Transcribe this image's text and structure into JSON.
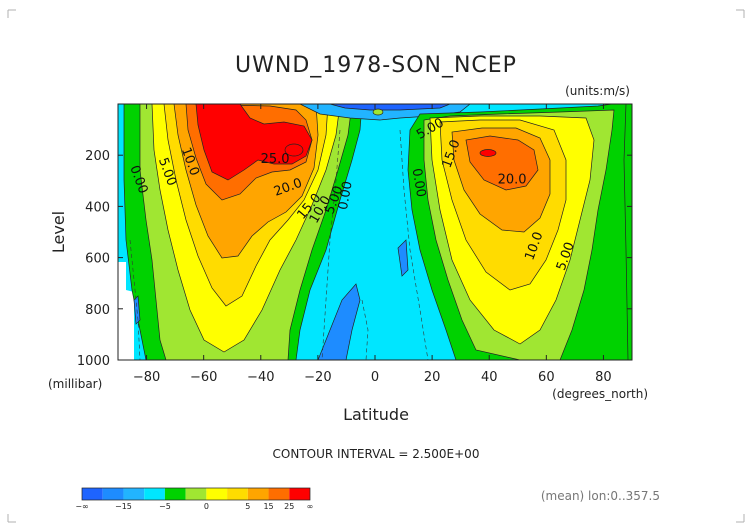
{
  "title": "UWND_1978-SON_NCEP",
  "units": "(units:m/s)",
  "xlabel": "Latitude",
  "ylabel": "Level",
  "yunit": "(millibar)",
  "xunit": "(degrees_north)",
  "contour_interval": "CONTOUR INTERVAL = 2.500E+00",
  "mean_note": "(mean) lon:0..357.5",
  "colors": {
    "neg15": "#1e64ff",
    "neg10": "#1e8cff",
    "neg5": "#22b4ff",
    "neg0": "#00e6ff",
    "pos0": "#00d200",
    "pos5": "#a0e632",
    "pos10": "#ffff00",
    "pos15": "#ffdc00",
    "pos20": "#ffa500",
    "pos25": "#ff6e00",
    "pos30": "#ff0000"
  },
  "colorbar": {
    "colors": [
      "#1e64ff",
      "#1e8cff",
      "#22b4ff",
      "#00e6ff",
      "#00d200",
      "#a0e632",
      "#ffff00",
      "#ffdc00",
      "#ffa500",
      "#ff6e00",
      "#ff0000"
    ],
    "labels": [
      "-∞",
      "-15",
      "-5",
      "0",
      "5",
      "15",
      "25",
      "∞"
    ]
  },
  "contour_labels": [
    {
      "text": "0.00",
      "lat": -84,
      "lev": 300,
      "rot": 70
    },
    {
      "text": "5.00",
      "lat": -74,
      "lev": 270,
      "rot": 70
    },
    {
      "text": "10.0",
      "lat": -66,
      "lev": 230,
      "rot": 70
    },
    {
      "text": "25.0",
      "lat": -35,
      "lev": 230,
      "rot": 0
    },
    {
      "text": "20.0",
      "lat": -30,
      "lev": 340,
      "rot": -20
    },
    {
      "text": "15.0",
      "lat": -22,
      "lev": 410,
      "rot": -50
    },
    {
      "text": "10.0",
      "lat": -18,
      "lev": 420,
      "rot": -60
    },
    {
      "text": "5.00",
      "lat": -13,
      "lev": 380,
      "rot": -70
    },
    {
      "text": "0.00",
      "lat": -9,
      "lev": 360,
      "rot": -80
    },
    {
      "text": "0.00",
      "lat": 14,
      "lev": 310,
      "rot": 80
    },
    {
      "text": "5.00",
      "lat": 20,
      "lev": 110,
      "rot": -30
    },
    {
      "text": "15.0",
      "lat": 28,
      "lev": 200,
      "rot": -70
    },
    {
      "text": "20.0",
      "lat": 48,
      "lev": 310,
      "rot": 0
    },
    {
      "text": "10.0",
      "lat": 57,
      "lev": 560,
      "rot": -70
    },
    {
      "text": "5.00",
      "lat": 68,
      "lev": 600,
      "rot": -70
    }
  ],
  "chart_data": {
    "type": "contour",
    "variable": "UWND",
    "xlim": [
      -90,
      90
    ],
    "ylim": [
      1000,
      0
    ],
    "xticks": [
      -80,
      -60,
      -40,
      -20,
      0,
      20,
      40,
      60,
      80
    ],
    "yticks": [
      200,
      400,
      600,
      800,
      1000
    ],
    "interval": 2.5,
    "features": [
      {
        "kind": "southern jet max",
        "lat": -30,
        "lev": 200,
        "value": 28
      },
      {
        "kind": "northern jet max",
        "lat": 40,
        "lev": 200,
        "value": 24
      },
      {
        "kind": "easterly region",
        "lat": 0,
        "lev": 500,
        "value": -5
      }
    ]
  }
}
